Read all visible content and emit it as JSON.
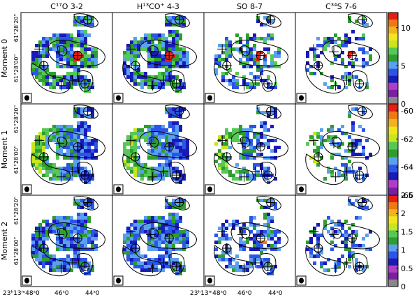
{
  "chart_data": {
    "type": "heatmap",
    "columns": [
      {
        "main": "C",
        "sup": "17",
        "rest": "O 3-2"
      },
      {
        "main": "H",
        "sup": "13",
        "rest": "CO",
        "sup2": "+",
        "rest2": " 4-3"
      },
      {
        "main": "SO 8-7"
      },
      {
        "main": "C",
        "sup": "34",
        "rest": "S 7-6"
      }
    ],
    "rows": [
      {
        "label": "Moment 0",
        "colorbar_ticks": [
          "10",
          "5",
          "0"
        ],
        "colorbar_range": [
          0,
          12
        ]
      },
      {
        "label": "Moment 1",
        "colorbar_ticks": [
          "-60",
          "-62",
          "-64",
          "-66"
        ],
        "colorbar_range": [
          -66,
          -59.5
        ]
      },
      {
        "label": "Moment 2",
        "colorbar_ticks": [
          "2.5",
          "2",
          "1.5",
          "1",
          "0.5",
          "0"
        ],
        "colorbar_range": [
          0,
          2.5
        ]
      }
    ],
    "y_ticks": [
      {
        "dec": "61°28'20\""
      },
      {
        "dec": "61°28'00\""
      }
    ],
    "x_ticks": [
      {
        "ra": "23h13m48.0s",
        "text": "23ʰ13ᵐ48ˢ0"
      },
      {
        "ra": "46.0s",
        "text": "46ˢ0"
      },
      {
        "ra": "44.0s",
        "text": "44ˢ0"
      }
    ],
    "x_ticks_right": [
      {
        "text": "23ʰ13ᵐ48ˢ0"
      },
      {
        "text": "46ˢ0"
      },
      {
        "text": "44ˢ0"
      }
    ],
    "colorscale": [
      "#888888",
      "#7a1fa0",
      "#b13cc8",
      "#1a1ab8",
      "#2b55e6",
      "#5aa0f0",
      "#2e9e2e",
      "#55c855",
      "#c8e61e",
      "#f0e61e",
      "#f0b41e",
      "#f07814",
      "#e61e14"
    ]
  }
}
